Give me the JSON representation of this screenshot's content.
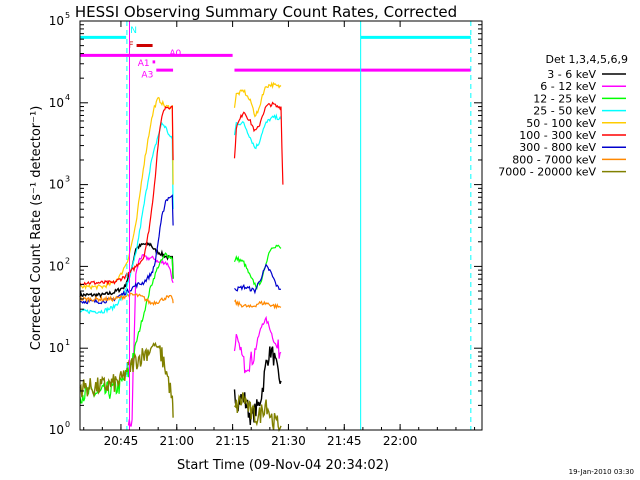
{
  "chart_data": {
    "type": "line",
    "title": "HESSI Observing Summary Count Rates, Corrected",
    "xlabel": "Start Time (09-Nov-04 20:34:02)",
    "ylabel": "Corrected Count Rate (s⁻¹ detector⁻¹)",
    "x_unit": "minutes since 20:34:02",
    "xlim": [
      0,
      108
    ],
    "ylim_log10": [
      0,
      5
    ],
    "y_scale": "log",
    "x_ticks": [
      {
        "x": 11,
        "label": "20:45"
      },
      {
        "x": 26,
        "label": "21:00"
      },
      {
        "x": 41,
        "label": "21:15"
      },
      {
        "x": 56,
        "label": "21:30"
      },
      {
        "x": 71,
        "label": "21:45"
      },
      {
        "x": 86,
        "label": "22:00"
      }
    ],
    "y_ticks": [
      {
        "exp": 0,
        "label": "10",
        "sup": "0"
      },
      {
        "exp": 1,
        "label": "10",
        "sup": "1"
      },
      {
        "exp": 2,
        "label": "10",
        "sup": "2"
      },
      {
        "exp": 3,
        "label": "10",
        "sup": "3"
      },
      {
        "exp": 4,
        "label": "10",
        "sup": "4"
      },
      {
        "exp": 5,
        "label": "10",
        "sup": "5"
      }
    ],
    "legend_title": "Det 1,3,4,5,6,9",
    "legend_position": "right",
    "series": [
      {
        "name": "3 - 6 keV",
        "color": "#000000",
        "width": 1.4,
        "segments": [
          [
            [
              0,
              1.65
            ],
            [
              6,
              1.65
            ],
            [
              9,
              1.68
            ],
            [
              12,
              1.75
            ],
            [
              14,
              2.0
            ],
            [
              15,
              2.22
            ],
            [
              17,
              2.27
            ],
            [
              19,
              2.27
            ],
            [
              20,
              2.2
            ],
            [
              22,
              2.15
            ],
            [
              24,
              2.1
            ],
            [
              24.8,
              2.1
            ],
            [
              25,
              1.85
            ]
          ],
          [
            [
              41.5,
              0.55
            ],
            [
              42,
              0.35
            ],
            [
              44,
              0.4
            ],
            [
              46,
              0.15
            ],
            [
              48,
              0.3
            ],
            [
              49,
              0.5
            ],
            [
              50,
              0.8
            ],
            [
              51,
              1.0
            ],
            [
              52,
              0.9
            ],
            [
              53,
              0.7
            ],
            [
              54,
              0.6
            ]
          ]
        ]
      },
      {
        "name": "6 - 12 keV",
        "color": "#ff00ff",
        "width": 1.2,
        "segments": [
          [
            [
              13,
              0.0
            ],
            [
              14,
              0.15
            ],
            [
              15,
              1.9
            ],
            [
              16,
              2.1
            ],
            [
              17,
              2.12
            ],
            [
              18,
              2.1
            ],
            [
              20,
              2.1
            ],
            [
              21,
              2.05
            ],
            [
              23,
              2.05
            ],
            [
              24,
              2.0
            ],
            [
              25,
              1.8
            ]
          ],
          [
            [
              41.5,
              0.9
            ],
            [
              42,
              1.15
            ],
            [
              43,
              1.0
            ],
            [
              44,
              0.8
            ],
            [
              46,
              0.85
            ],
            [
              47,
              0.95
            ],
            [
              48,
              1.15
            ],
            [
              49,
              1.3
            ],
            [
              50,
              1.35
            ],
            [
              51,
              1.25
            ],
            [
              52,
              1.1
            ],
            [
              53,
              1.0
            ],
            [
              54,
              0.95
            ]
          ]
        ]
      },
      {
        "name": "12 - 25 keV",
        "color": "#00ff00",
        "width": 1.2,
        "segments": [
          [
            [
              0,
              0.45
            ],
            [
              6,
              0.45
            ],
            [
              9,
              0.5
            ],
            [
              11,
              0.55
            ],
            [
              13,
              0.7
            ],
            [
              15,
              1.05
            ],
            [
              17,
              1.4
            ],
            [
              19,
              1.75
            ],
            [
              21,
              2.0
            ],
            [
              23,
              2.15
            ],
            [
              24.8,
              2.1
            ],
            [
              25,
              1.85
            ]
          ],
          [
            [
              41.5,
              2.05
            ],
            [
              42,
              2.1
            ],
            [
              44,
              2.05
            ],
            [
              46,
              1.85
            ],
            [
              47.5,
              1.75
            ],
            [
              49,
              1.85
            ],
            [
              50,
              2.05
            ],
            [
              51,
              2.2
            ],
            [
              52,
              2.25
            ],
            [
              53,
              2.25
            ],
            [
              54,
              2.22
            ]
          ]
        ]
      },
      {
        "name": "25 - 50 keV",
        "color": "#00ffff",
        "width": 1.2,
        "segments": [
          [
            [
              0,
              1.45
            ],
            [
              6,
              1.45
            ],
            [
              9,
              1.5
            ],
            [
              11,
              1.6
            ],
            [
              13,
              1.8
            ],
            [
              15,
              2.15
            ],
            [
              17,
              2.7
            ],
            [
              19,
              3.25
            ],
            [
              21,
              3.6
            ],
            [
              22,
              3.75
            ],
            [
              23,
              3.7
            ],
            [
              24,
              3.6
            ],
            [
              24.8,
              3.55
            ],
            [
              25,
              2.7
            ]
          ],
          [
            [
              41.5,
              3.6
            ],
            [
              42,
              3.75
            ],
            [
              44,
              3.75
            ],
            [
              46,
              3.55
            ],
            [
              47,
              3.45
            ],
            [
              48,
              3.5
            ],
            [
              49,
              3.65
            ],
            [
              50,
              3.75
            ],
            [
              51,
              3.8
            ],
            [
              52,
              3.82
            ],
            [
              53,
              3.82
            ],
            [
              54,
              3.8
            ]
          ]
        ]
      },
      {
        "name": "50 - 100 keV",
        "color": "#ffcc00",
        "width": 1.2,
        "segments": [
          [
            [
              0,
              1.75
            ],
            [
              6,
              1.75
            ],
            [
              9,
              1.8
            ],
            [
              11,
              1.9
            ],
            [
              13,
              2.1
            ],
            [
              15,
              2.5
            ],
            [
              17,
              3.2
            ],
            [
              19,
              3.75
            ],
            [
              20,
              3.95
            ],
            [
              21,
              4.05
            ],
            [
              22,
              4.0
            ],
            [
              23,
              3.95
            ],
            [
              24.8,
              3.95
            ],
            [
              25,
              3.0
            ]
          ],
          [
            [
              41.5,
              3.95
            ],
            [
              42,
              4.1
            ],
            [
              44,
              4.15
            ],
            [
              46,
              4.0
            ],
            [
              47,
              3.85
            ],
            [
              48,
              3.9
            ],
            [
              49,
              4.1
            ],
            [
              50,
              4.2
            ],
            [
              51,
              4.22
            ],
            [
              52,
              4.22
            ],
            [
              53,
              4.2
            ],
            [
              54,
              4.2
            ]
          ]
        ]
      },
      {
        "name": "100 - 300 keV",
        "color": "#ff0000",
        "width": 1.2,
        "segments": [
          [
            [
              0,
              1.8
            ],
            [
              6,
              1.8
            ],
            [
              9,
              1.8
            ],
            [
              11,
              1.85
            ],
            [
              13,
              1.9
            ],
            [
              15,
              2.0
            ],
            [
              17,
              2.1
            ],
            [
              18,
              2.3
            ],
            [
              19,
              2.6
            ],
            [
              20,
              3.0
            ],
            [
              21,
              3.5
            ],
            [
              22,
              3.85
            ],
            [
              23,
              3.95
            ],
            [
              24,
              3.95
            ],
            [
              24.8,
              3.95
            ],
            [
              25,
              3.3
            ]
          ],
          [
            [
              41.5,
              3.3
            ],
            [
              42,
              3.7
            ],
            [
              44,
              3.9
            ],
            [
              46,
              3.75
            ],
            [
              47,
              3.65
            ],
            [
              48,
              3.7
            ],
            [
              49,
              3.85
            ],
            [
              50,
              3.95
            ],
            [
              51,
              3.98
            ],
            [
              52,
              3.98
            ],
            [
              53,
              3.95
            ],
            [
              54,
              3.95
            ],
            [
              54.5,
              3.0
            ]
          ]
        ]
      },
      {
        "name": "300 - 800 keV",
        "color": "#0000cc",
        "width": 1.2,
        "segments": [
          [
            [
              0,
              1.57
            ],
            [
              6,
              1.57
            ],
            [
              9,
              1.6
            ],
            [
              11,
              1.65
            ],
            [
              13,
              1.7
            ],
            [
              15,
              1.77
            ],
            [
              17,
              1.8
            ],
            [
              19,
              1.9
            ],
            [
              20,
              2.0
            ],
            [
              21,
              2.3
            ],
            [
              22,
              2.6
            ],
            [
              23,
              2.8
            ],
            [
              24,
              2.85
            ],
            [
              24.8,
              2.85
            ],
            [
              25,
              2.5
            ]
          ],
          [
            [
              41.5,
              1.75
            ],
            [
              42,
              1.72
            ],
            [
              44,
              1.75
            ],
            [
              46,
              1.72
            ],
            [
              47,
              1.7
            ],
            [
              48,
              1.8
            ],
            [
              49,
              1.9
            ],
            [
              50,
              2.0
            ],
            [
              51,
              1.95
            ],
            [
              52,
              1.85
            ],
            [
              53,
              1.75
            ],
            [
              54,
              1.72
            ]
          ]
        ]
      },
      {
        "name": "800 - 7000 keV",
        "color": "#ff8800",
        "width": 1.2,
        "segments": [
          [
            [
              0,
              1.6
            ],
            [
              6,
              1.6
            ],
            [
              9,
              1.6
            ],
            [
              11,
              1.62
            ],
            [
              13,
              1.65
            ],
            [
              15,
              1.65
            ],
            [
              17,
              1.62
            ],
            [
              19,
              1.55
            ],
            [
              21,
              1.57
            ],
            [
              23,
              1.62
            ],
            [
              24.8,
              1.62
            ],
            [
              25,
              1.55
            ]
          ],
          [
            [
              41.5,
              1.57
            ],
            [
              42,
              1.55
            ],
            [
              44,
              1.52
            ],
            [
              46,
              1.5
            ],
            [
              48,
              1.55
            ],
            [
              50,
              1.55
            ],
            [
              52,
              1.52
            ],
            [
              54,
              1.5
            ]
          ]
        ]
      },
      {
        "name": "7000 - 20000 keV",
        "color": "#808000",
        "width": 1.4,
        "segments": [
          [
            [
              0,
              0.52
            ],
            [
              4,
              0.52
            ],
            [
              8,
              0.55
            ],
            [
              11,
              0.6
            ],
            [
              13,
              0.75
            ],
            [
              15,
              0.85
            ],
            [
              17,
              0.92
            ],
            [
              19,
              1.0
            ],
            [
              20,
              1.05
            ],
            [
              21,
              1.0
            ],
            [
              22,
              0.9
            ],
            [
              23,
              0.75
            ],
            [
              24,
              0.55
            ],
            [
              24.8,
              0.35
            ],
            [
              25,
              0.15
            ]
          ],
          [
            [
              41.5,
              0.25
            ],
            [
              44,
              0.4
            ],
            [
              46,
              0.2
            ],
            [
              48,
              0.15
            ],
            [
              50,
              0.35
            ],
            [
              51,
              0.2
            ],
            [
              52,
              0.1
            ],
            [
              54,
              0.05
            ]
          ]
        ]
      }
    ],
    "flag_bars": [
      {
        "label": "N",
        "color": "#00ffff",
        "y": 4.8,
        "x": [
          [
            0,
            12.4
          ],
          [
            75.4,
            105
          ]
        ],
        "label_x": 13.5,
        "label_y": 4.9
      },
      {
        "label": "F",
        "color": "#cc0000",
        "y": 4.7,
        "x": [
          [
            15.2,
            19.5
          ]
        ],
        "label_x": 13.0,
        "label_y": 4.72
      },
      {
        "label": "A0",
        "color": "#ff00ff",
        "y": 4.58,
        "x": [
          [
            0,
            41
          ]
        ],
        "label_x": 24.0,
        "label_y": 4.62
      },
      {
        "label": "A1",
        "color": "#ff00ff",
        "y": 4.5,
        "x": [
          [
            19.5,
            20.2
          ]
        ],
        "label_x": 15.5,
        "label_y": 4.5
      },
      {
        "label": "A3",
        "color": "#ff00ff",
        "y": 4.4,
        "x": [
          [
            20.5,
            25
          ],
          [
            41.5,
            105
          ]
        ],
        "label_x": 16.5,
        "label_y": 4.36
      }
    ],
    "vlines": [
      {
        "x": 12.6,
        "color": "#00ffff",
        "dash": true
      },
      {
        "x": 13.3,
        "color": "#ff00ff",
        "dash": false
      },
      {
        "x": 75.4,
        "color": "#00ffff",
        "dash": false
      },
      {
        "x": 105.0,
        "color": "#00ffff",
        "dash": true
      }
    ],
    "timestamp": "19-Jan-2010 03:30"
  }
}
